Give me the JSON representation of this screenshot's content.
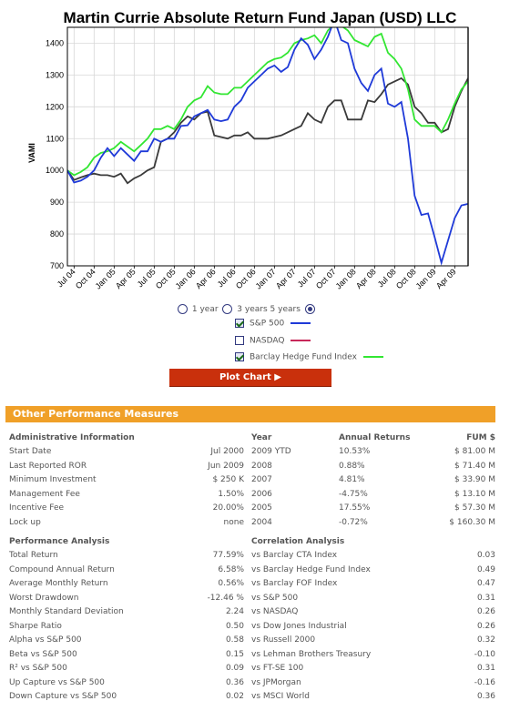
{
  "title": "Martin Currie Absolute Return Fund Japan (USD) LLC",
  "chart_data": {
    "type": "line",
    "ylabel": "VAMI",
    "ylim": [
      700,
      1450
    ],
    "yticks": [
      700,
      800,
      900,
      1000,
      1100,
      1200,
      1300,
      1400
    ],
    "xticks": [
      "Jul 04",
      "Oct 04",
      "Jan 05",
      "Apr 05",
      "Jul 05",
      "Oct 05",
      "Jan 06",
      "Apr 06",
      "Jul 06",
      "Oct 06",
      "Jan 07",
      "Apr 07",
      "Jul 07",
      "Oct 07",
      "Jan 08",
      "Apr 08",
      "Jul 08",
      "Oct 08",
      "Jan 09",
      "Apr 09"
    ],
    "x": [
      "2004-06",
      "2004-07",
      "2004-08",
      "2004-09",
      "2004-10",
      "2004-11",
      "2004-12",
      "2005-01",
      "2005-02",
      "2005-03",
      "2005-04",
      "2005-05",
      "2005-06",
      "2005-07",
      "2005-08",
      "2005-09",
      "2005-10",
      "2005-11",
      "2005-12",
      "2006-01",
      "2006-02",
      "2006-03",
      "2006-04",
      "2006-05",
      "2006-06",
      "2006-07",
      "2006-08",
      "2006-09",
      "2006-10",
      "2006-11",
      "2006-12",
      "2007-01",
      "2007-02",
      "2007-03",
      "2007-04",
      "2007-05",
      "2007-06",
      "2007-07",
      "2007-08",
      "2007-09",
      "2007-10",
      "2007-11",
      "2007-12",
      "2008-01",
      "2008-02",
      "2008-03",
      "2008-04",
      "2008-05",
      "2008-06",
      "2008-07",
      "2008-08",
      "2008-09",
      "2008-10",
      "2008-11",
      "2008-12",
      "2009-01",
      "2009-02",
      "2009-03",
      "2009-04",
      "2009-05",
      "2009-06"
    ],
    "series": [
      {
        "name": "S&P 500",
        "color": "#1f3ad8",
        "values": [
          1000,
          962,
          968,
          980,
          1000,
          1040,
          1070,
          1045,
          1070,
          1050,
          1030,
          1060,
          1060,
          1100,
          1090,
          1100,
          1100,
          1140,
          1142,
          1170,
          1180,
          1190,
          1160,
          1155,
          1160,
          1200,
          1220,
          1260,
          1280,
          1300,
          1320,
          1330,
          1310,
          1325,
          1380,
          1415,
          1395,
          1350,
          1380,
          1420,
          1475,
          1410,
          1400,
          1320,
          1275,
          1250,
          1300,
          1320,
          1210,
          1200,
          1215,
          1100,
          920,
          860,
          865,
          790,
          710,
          780,
          850,
          890,
          895
        ]
      },
      {
        "name": "NASDAQ",
        "color": "#3a3a3a",
        "values": [
          1000,
          970,
          978,
          985,
          990,
          985,
          985,
          980,
          990,
          960,
          975,
          985,
          1000,
          1010,
          1090,
          1100,
          1120,
          1150,
          1170,
          1160,
          1180,
          1185,
          1110,
          1105,
          1100,
          1110,
          1110,
          1120,
          1100,
          1100,
          1100,
          1105,
          1110,
          1120,
          1130,
          1140,
          1180,
          1160,
          1150,
          1200,
          1220,
          1220,
          1160,
          1160,
          1160,
          1220,
          1215,
          1240,
          1270,
          1280,
          1290,
          1270,
          1200,
          1180,
          1150,
          1150,
          1120,
          1130,
          1200,
          1250,
          1290
        ]
      },
      {
        "name": "Barclay Hedge Fund Index",
        "color": "#32e632",
        "values": [
          1000,
          985,
          995,
          1010,
          1040,
          1055,
          1060,
          1070,
          1090,
          1075,
          1060,
          1080,
          1100,
          1130,
          1130,
          1140,
          1130,
          1160,
          1200,
          1220,
          1230,
          1265,
          1245,
          1240,
          1240,
          1260,
          1260,
          1280,
          1300,
          1320,
          1340,
          1350,
          1355,
          1370,
          1400,
          1410,
          1415,
          1425,
          1400,
          1440,
          1460,
          1455,
          1440,
          1410,
          1400,
          1390,
          1420,
          1430,
          1370,
          1350,
          1320,
          1255,
          1160,
          1140,
          1140,
          1140,
          1120,
          1160,
          1210,
          1255,
          1280
        ]
      }
    ],
    "grid": true
  },
  "controls": {
    "period_label_1": "1 year",
    "period_label_3": "3 years",
    "period_label_5": "5 years",
    "legend_sp500": "S&P 500",
    "legend_nasdaq": "NASDAQ",
    "legend_barclay": "Barclay Hedge Fund Index",
    "plot_button": "Plot Chart ▶"
  },
  "section_title": "Other Performance Measures",
  "admin": {
    "header": "Administrative Information",
    "rows": [
      [
        "Start Date",
        "Jul 2000"
      ],
      [
        "Last Reported ROR",
        "Jun 2009"
      ],
      [
        "Minimum Investment",
        "$ 250 K"
      ],
      [
        "Management Fee",
        "1.50%"
      ],
      [
        "Incentive Fee",
        "20.00%"
      ],
      [
        "Lock up",
        "none"
      ]
    ]
  },
  "returns": {
    "header_year": "Year",
    "header_annual": "Annual Returns",
    "header_fum": "FUM $",
    "rows": [
      [
        "2009 YTD",
        "10.53%",
        "$ 81.00 M"
      ],
      [
        "2008",
        "0.88%",
        "$ 71.40 M"
      ],
      [
        "2007",
        "4.81%",
        "$ 33.90 M"
      ],
      [
        "2006",
        "-4.75%",
        "$ 13.10 M"
      ],
      [
        "2005",
        "17.55%",
        "$ 57.30 M"
      ],
      [
        "2004",
        "-0.72%",
        "$ 160.30 M"
      ]
    ]
  },
  "performance": {
    "header": "Performance Analysis",
    "rows": [
      [
        "Total Return",
        "77.59%"
      ],
      [
        "Compound Annual Return",
        "6.58%"
      ],
      [
        "Average Monthly Return",
        "0.56%"
      ],
      [
        "Worst Drawdown",
        "-12.46 %"
      ],
      [
        "Monthly Standard Deviation",
        "2.24"
      ],
      [
        "Sharpe Ratio",
        "0.50"
      ],
      [
        "Alpha vs S&P 500",
        "0.58"
      ],
      [
        "Beta vs S&P 500",
        "0.15"
      ],
      [
        "R² vs S&P 500",
        "0.09"
      ],
      [
        "Up Capture vs S&P 500",
        "0.36"
      ],
      [
        "Down Capture vs S&P 500",
        "0.02"
      ]
    ]
  },
  "correlation": {
    "header": "Correlation Analysis",
    "rows": [
      [
        "vs Barclay CTA Index",
        "0.03"
      ],
      [
        "vs Barclay Hedge Fund Index",
        "0.49"
      ],
      [
        "vs Barclay FOF Index",
        "0.47"
      ],
      [
        "vs S&P 500",
        "0.31"
      ],
      [
        "vs NASDAQ",
        "0.26"
      ],
      [
        "vs Dow Jones Industrial",
        "0.26"
      ],
      [
        "vs Russell 2000",
        "0.32"
      ],
      [
        "vs Lehman Brothers Treasury",
        "-0.10"
      ],
      [
        "vs FT-SE 100",
        "0.31"
      ],
      [
        "vs JPMorgan",
        "-0.16"
      ],
      [
        "vs MSCI World",
        "0.36"
      ]
    ]
  }
}
